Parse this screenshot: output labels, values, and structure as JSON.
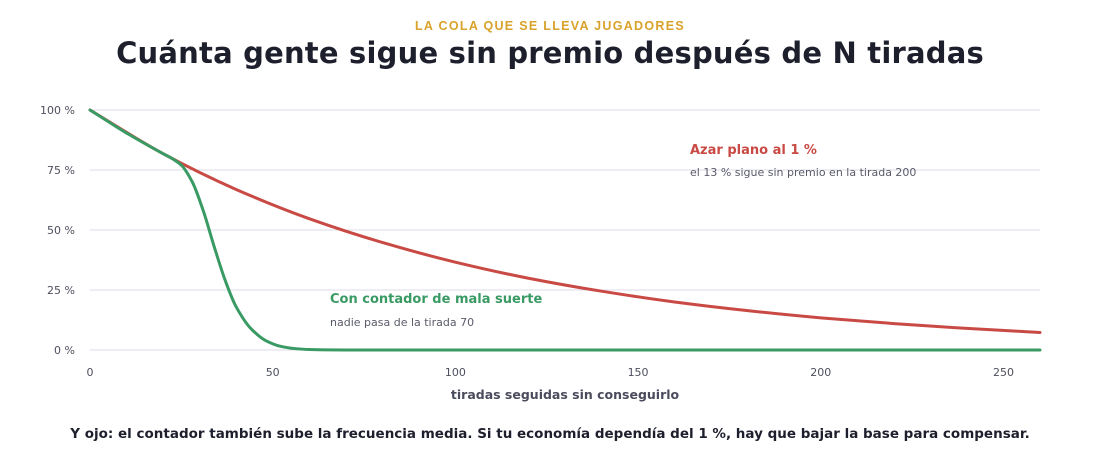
{
  "eyebrow": "LA COLA QUE SE LLEVA JUGADORES",
  "footnote": "Y ojo: el contador también sube la frecuencia media. Si tu economía dependía del 1 %, hay que bajar la base para compensar.",
  "chart_data": {
    "type": "line",
    "title": "Cuánta gente sigue sin premio después de N tiradas",
    "xlabel": "tiradas seguidas sin conseguirlo",
    "ylabel": "",
    "xlim": [
      0,
      260
    ],
    "ylim": [
      0,
      100
    ],
    "x_ticks": [
      0,
      50,
      100,
      150,
      200,
      250
    ],
    "y_ticks": [
      0,
      25,
      50,
      75,
      100
    ],
    "y_tick_labels": [
      "0 %",
      "25 %",
      "50 %",
      "75 %",
      "100 %"
    ],
    "grid": true,
    "series": [
      {
        "name": "Azar plano al 1 %",
        "note": "el 13 % sigue sin premio en la tirada 200",
        "color": "#c94a44",
        "x": [
          0,
          20,
          40,
          60,
          80,
          100,
          120,
          140,
          160,
          180,
          200,
          220,
          240,
          260
        ],
        "y": [
          100,
          81.8,
          66.9,
          54.7,
          44.8,
          36.6,
          29.9,
          24.5,
          20.0,
          16.4,
          13.4,
          11.0,
          9.0,
          7.3
        ]
      },
      {
        "name": "Con contador de mala suerte",
        "note": "nadie pasa de la tirada 70",
        "color": "#3a9a64",
        "x": [
          0,
          10,
          20,
          22,
          25,
          28,
          31,
          34,
          37,
          40,
          44,
          48,
          52,
          56,
          60,
          65,
          70,
          80,
          100,
          150,
          200,
          260
        ],
        "y": [
          100,
          90.4,
          81.8,
          80.2,
          77.0,
          70.0,
          58.0,
          43.0,
          29.0,
          18.0,
          9.0,
          4.0,
          1.6,
          0.6,
          0.2,
          0.05,
          0,
          0,
          0,
          0,
          0,
          0
        ]
      }
    ]
  }
}
